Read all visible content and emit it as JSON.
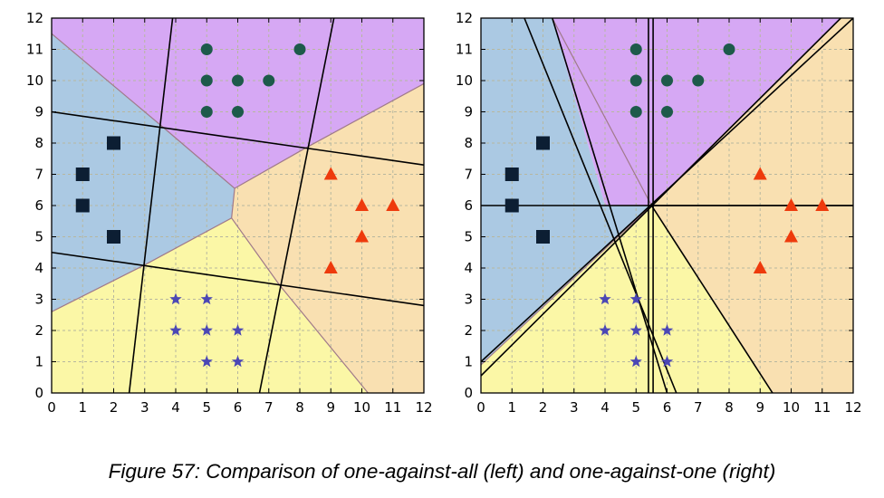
{
  "caption": "Figure 57: Comparison of one-against-all (left) and one-against-one (right)",
  "colors": {
    "region_purple": "#d6a8f4",
    "region_blue": "#abc9e3",
    "region_orange": "#f9e0b1",
    "region_yellow": "#fbf7a6",
    "circle_marker": "#1d5a4a",
    "square_marker": "#0c1e33",
    "triangle_marker": "#ee3a0c",
    "star_marker": "#4b47b5",
    "line": "#000000",
    "grid": "#b7b79f"
  },
  "chart_data": [
    {
      "type": "scatter",
      "panel": "left",
      "xlim": [
        0,
        12
      ],
      "ylim": [
        0,
        12
      ],
      "xticks": [
        0,
        1,
        2,
        3,
        4,
        5,
        6,
        7,
        8,
        9,
        10,
        11,
        12
      ],
      "yticks": [
        0,
        1,
        2,
        3,
        4,
        5,
        6,
        7,
        8,
        9,
        10,
        11,
        12
      ],
      "grid": true,
      "series": [
        {
          "marker": "circle",
          "color": "#1d5a4a",
          "points": [
            [
              5,
              11
            ],
            [
              8,
              11
            ],
            [
              5,
              10
            ],
            [
              6,
              10
            ],
            [
              7,
              10
            ],
            [
              5,
              9
            ],
            [
              6,
              9
            ]
          ]
        },
        {
          "marker": "square",
          "color": "#0c1e33",
          "points": [
            [
              2,
              8
            ],
            [
              1,
              7
            ],
            [
              1,
              6
            ],
            [
              2,
              5
            ]
          ]
        },
        {
          "marker": "triangle",
          "color": "#ee3a0c",
          "points": [
            [
              9,
              7
            ],
            [
              10,
              6
            ],
            [
              11,
              6
            ],
            [
              10,
              5
            ],
            [
              9,
              4
            ]
          ]
        },
        {
          "marker": "star",
          "color": "#4b47b5",
          "points": [
            [
              4,
              3
            ],
            [
              5,
              3
            ],
            [
              4,
              2
            ],
            [
              5,
              2
            ],
            [
              6,
              2
            ],
            [
              5,
              1
            ],
            [
              6,
              1
            ]
          ]
        }
      ],
      "regions": [
        {
          "class": "circle",
          "color": "#d6a8f4",
          "polygon": [
            [
              0,
              11.5
            ],
            [
              3.6,
              8.5
            ],
            [
              5.9,
              6.55
            ],
            [
              8.2,
              7.85
            ],
            [
              12,
              9.9
            ],
            [
              12,
              12
            ],
            [
              0,
              12
            ]
          ]
        },
        {
          "class": "square",
          "color": "#abc9e3",
          "polygon": [
            [
              0,
              11.5
            ],
            [
              3.6,
              8.5
            ],
            [
              5.9,
              6.55
            ],
            [
              5.8,
              5.6
            ],
            [
              3,
              4.1
            ],
            [
              0,
              2.6
            ]
          ]
        },
        {
          "class": "triangle",
          "color": "#f9e0b1",
          "polygon": [
            [
              5.9,
              6.55
            ],
            [
              8.2,
              7.85
            ],
            [
              12,
              9.9
            ],
            [
              12,
              0
            ],
            [
              10.2,
              0
            ],
            [
              7.35,
              3.45
            ],
            [
              5.8,
              5.6
            ]
          ]
        },
        {
          "class": "star",
          "color": "#fbf7a6",
          "polygon": [
            [
              0,
              2.6
            ],
            [
              3,
              4.1
            ],
            [
              5.8,
              5.6
            ],
            [
              7.35,
              3.45
            ],
            [
              10.2,
              0
            ],
            [
              0,
              0
            ]
          ]
        }
      ],
      "boundaries": [
        [
          [
            0,
            11.5
          ],
          [
            3.6,
            8.5
          ]
        ],
        [
          [
            3.6,
            8.5
          ],
          [
            5.9,
            6.55
          ]
        ],
        [
          [
            5.9,
            6.55
          ],
          [
            8.2,
            7.85
          ]
        ],
        [
          [
            8.2,
            7.85
          ],
          [
            12,
            9.9
          ]
        ],
        [
          [
            5.9,
            6.55
          ],
          [
            5.8,
            5.6
          ]
        ],
        [
          [
            5.8,
            5.6
          ],
          [
            3,
            4.1
          ]
        ],
        [
          [
            3,
            4.1
          ],
          [
            0,
            2.6
          ]
        ],
        [
          [
            5.8,
            5.6
          ],
          [
            7.35,
            3.45
          ]
        ],
        [
          [
            7.35,
            3.45
          ],
          [
            10.2,
            0
          ]
        ]
      ],
      "lines": [
        [
          [
            2.5,
            0
          ],
          [
            3.9,
            12
          ]
        ],
        [
          [
            6.7,
            0
          ],
          [
            9.1,
            12
          ]
        ],
        [
          [
            0,
            9.0
          ],
          [
            12,
            7.3
          ]
        ],
        [
          [
            0,
            4.5
          ],
          [
            12,
            2.8
          ]
        ]
      ]
    },
    {
      "type": "scatter",
      "panel": "right",
      "xlim": [
        0,
        12
      ],
      "ylim": [
        0,
        12
      ],
      "xticks": [
        0,
        1,
        2,
        3,
        4,
        5,
        6,
        7,
        8,
        9,
        10,
        11,
        12
      ],
      "yticks": [
        0,
        1,
        2,
        3,
        4,
        5,
        6,
        7,
        8,
        9,
        10,
        11,
        12
      ],
      "grid": true,
      "series": [
        {
          "marker": "circle",
          "color": "#1d5a4a",
          "points": [
            [
              5,
              11
            ],
            [
              8,
              11
            ],
            [
              5,
              10
            ],
            [
              6,
              10
            ],
            [
              7,
              10
            ],
            [
              5,
              9
            ],
            [
              6,
              9
            ]
          ]
        },
        {
          "marker": "square",
          "color": "#0c1e33",
          "points": [
            [
              2,
              8
            ],
            [
              1,
              7
            ],
            [
              1,
              6
            ],
            [
              2,
              5
            ]
          ]
        },
        {
          "marker": "triangle",
          "color": "#ee3a0c",
          "points": [
            [
              9,
              7
            ],
            [
              10,
              6
            ],
            [
              11,
              6
            ],
            [
              10,
              5
            ],
            [
              9,
              4
            ]
          ]
        },
        {
          "marker": "star",
          "color": "#4b47b5",
          "points": [
            [
              4,
              3
            ],
            [
              5,
              3
            ],
            [
              4,
              2
            ],
            [
              5,
              2
            ],
            [
              6,
              2
            ],
            [
              5,
              1
            ],
            [
              6,
              1
            ]
          ]
        }
      ],
      "regions": [
        {
          "class": "circle",
          "color": "#d6a8f4",
          "polygon": [
            [
              2.3,
              12
            ],
            [
              11.6,
              12
            ],
            [
              5.5,
              6
            ],
            [
              4,
              6
            ]
          ]
        },
        {
          "class": "square",
          "color": "#abc9e3",
          "polygon": [
            [
              0,
              12
            ],
            [
              2.3,
              12
            ],
            [
              4,
              6
            ],
            [
              5.5,
              6
            ],
            [
              0,
              0.9
            ],
            [
              0,
              0
            ]
          ]
        },
        {
          "class": "triangle",
          "color": "#f9e0b1",
          "polygon": [
            [
              11.6,
              12
            ],
            [
              12,
              12
            ],
            [
              12,
              0
            ],
            [
              9.4,
              0
            ],
            [
              5.5,
              6
            ]
          ]
        },
        {
          "class": "star",
          "color": "#fbf7a6",
          "polygon": [
            [
              0,
              0.9
            ],
            [
              5.5,
              6
            ],
            [
              9.4,
              0
            ],
            [
              0,
              0
            ]
          ]
        }
      ],
      "boundaries": [
        [
          [
            2.3,
            12
          ],
          [
            5.5,
            6
          ]
        ],
        [
          [
            4,
            6
          ],
          [
            5.5,
            6
          ]
        ],
        [
          [
            5.5,
            6
          ],
          [
            11.6,
            12
          ]
        ],
        [
          [
            5.5,
            6
          ],
          [
            9.4,
            0
          ]
        ],
        [
          [
            0,
            0.9
          ],
          [
            5.5,
            6
          ]
        ]
      ],
      "lines": [
        [
          [
            1.4,
            12
          ],
          [
            6.3,
            0
          ]
        ],
        [
          [
            2.3,
            12
          ],
          [
            6.0,
            0
          ]
        ],
        [
          [
            5.4,
            0
          ],
          [
            5.4,
            12
          ]
        ],
        [
          [
            5.55,
            0
          ],
          [
            5.55,
            12
          ]
        ],
        [
          [
            0,
            6
          ],
          [
            12,
            6
          ]
        ],
        [
          [
            0,
            0.55
          ],
          [
            11.6,
            12
          ]
        ],
        [
          [
            0,
            1.0
          ],
          [
            12,
            12
          ]
        ],
        [
          [
            5.5,
            6
          ],
          [
            9.4,
            0
          ]
        ],
        [
          [
            5.5,
            6
          ],
          [
            12,
            6
          ]
        ]
      ]
    }
  ]
}
